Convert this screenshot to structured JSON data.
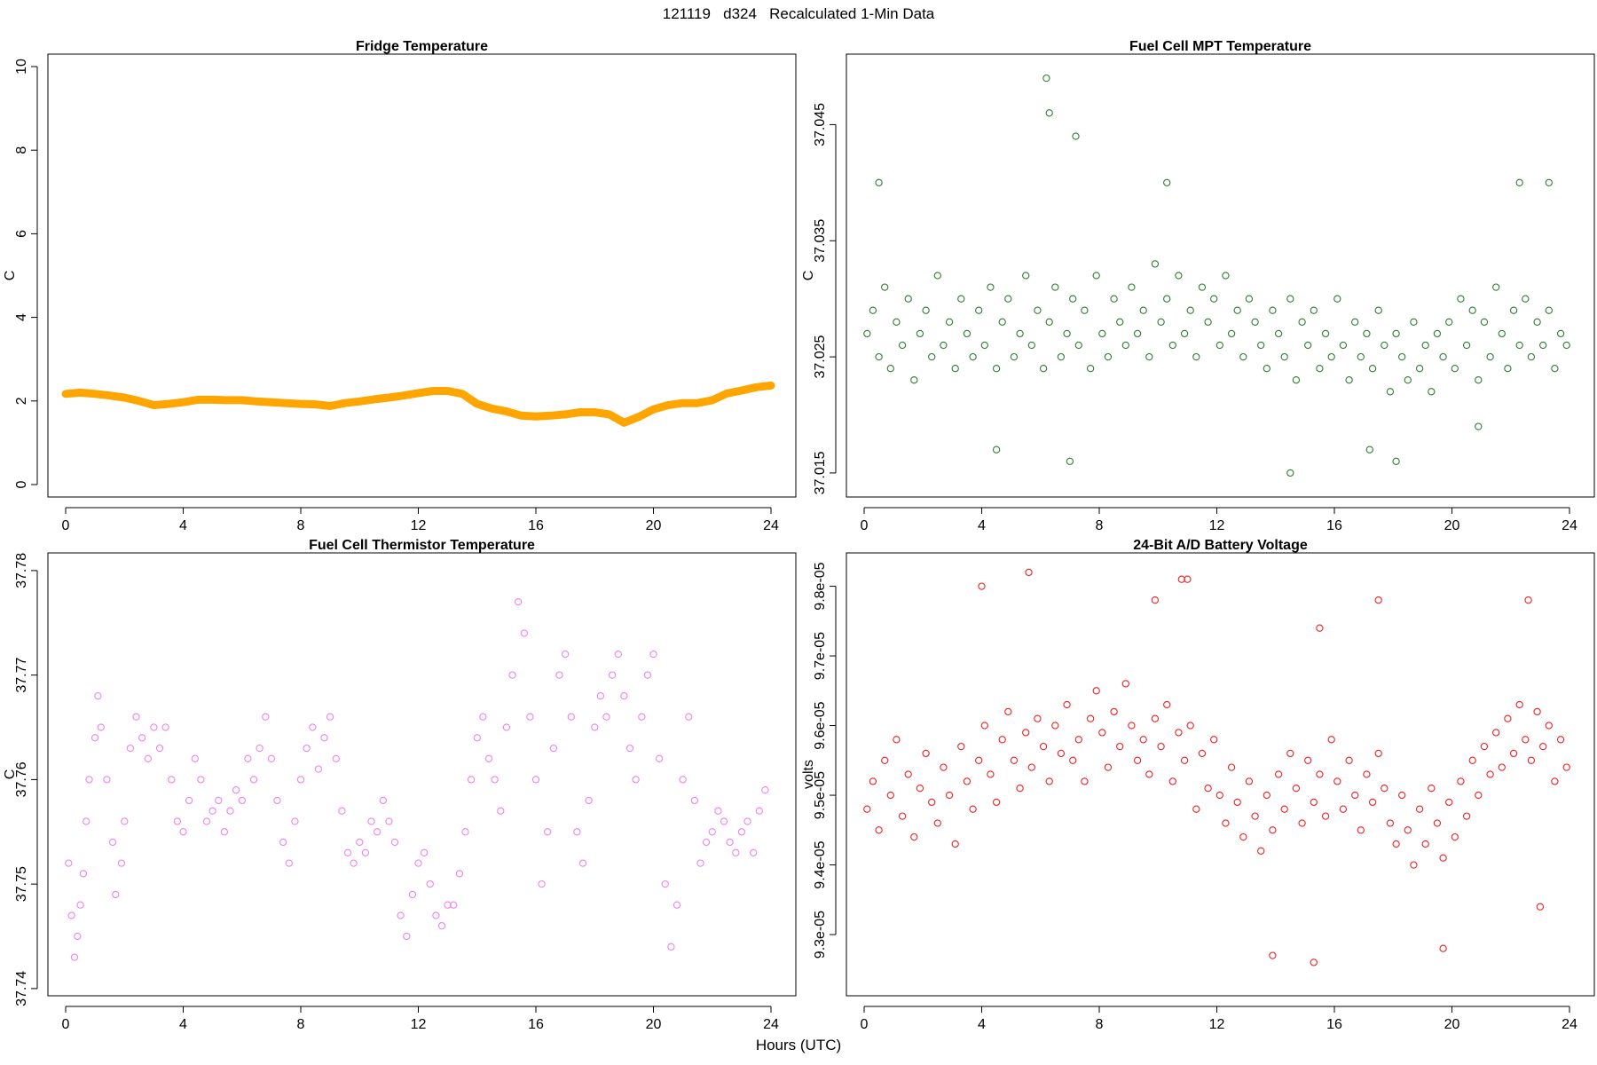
{
  "page": {
    "title": "121119   d324   Recalculated 1-Min Data",
    "xlabel": "Hours (UTC)"
  },
  "chart_data": [
    {
      "id": "fridge",
      "type": "line",
      "title": "Fridge Temperature",
      "ylabel": "C",
      "xlim": [
        0,
        24
      ],
      "ylim": [
        0,
        10
      ],
      "xticks": [
        0,
        4,
        8,
        12,
        16,
        20,
        24
      ],
      "yticks": [
        0,
        2,
        4,
        6,
        8,
        10
      ],
      "ytick_labels": [
        "0",
        "2",
        "4",
        "6",
        "8",
        "10"
      ],
      "color": "#FFA500",
      "x": [
        0,
        0.5,
        1,
        1.5,
        2,
        2.5,
        3,
        3.5,
        4,
        4.5,
        5,
        5.5,
        6,
        6.5,
        7,
        7.5,
        8,
        8.5,
        9,
        9.5,
        10,
        10.5,
        11,
        11.5,
        12,
        12.5,
        13,
        13.5,
        14,
        14.5,
        15,
        15.5,
        16,
        16.5,
        17,
        17.5,
        18,
        18.5,
        19,
        19.5,
        20,
        20.5,
        21,
        21.5,
        22,
        22.5,
        23,
        23.5,
        24
      ],
      "values": [
        2.17,
        2.2,
        2.17,
        2.13,
        2.08,
        2.0,
        1.9,
        1.93,
        1.97,
        2.03,
        2.03,
        2.02,
        2.02,
        1.99,
        1.97,
        1.95,
        1.93,
        1.92,
        1.88,
        1.95,
        1.99,
        2.04,
        2.08,
        2.13,
        2.19,
        2.24,
        2.24,
        2.17,
        1.93,
        1.82,
        1.75,
        1.65,
        1.63,
        1.65,
        1.68,
        1.73,
        1.73,
        1.68,
        1.48,
        1.62,
        1.8,
        1.9,
        1.95,
        1.95,
        2.02,
        2.18,
        2.25,
        2.33,
        2.37
      ]
    },
    {
      "id": "mpt",
      "type": "scatter",
      "title": "Fuel Cell MPT Temperature",
      "ylabel": "C",
      "xlim": [
        0,
        24
      ],
      "ylim": [
        37.014,
        37.05
      ],
      "xticks": [
        0,
        4,
        8,
        12,
        16,
        20,
        24
      ],
      "yticks": [
        37.015,
        37.025,
        37.035,
        37.045
      ],
      "ytick_labels": [
        "37.015",
        "37.025",
        "37.035",
        "37.045"
      ],
      "color": "#2E7D32",
      "x": [
        0.1,
        0.3,
        0.5,
        0.7,
        0.9,
        1.1,
        1.3,
        1.5,
        1.7,
        1.9,
        2.1,
        2.3,
        2.5,
        2.7,
        2.9,
        3.1,
        3.3,
        3.5,
        3.7,
        3.9,
        4.1,
        4.3,
        4.5,
        4.7,
        4.9,
        5.1,
        5.3,
        5.5,
        5.7,
        5.9,
        6.1,
        6.3,
        6.5,
        6.7,
        6.9,
        7.1,
        7.3,
        7.5,
        7.7,
        7.9,
        8.1,
        8.3,
        8.5,
        8.7,
        8.9,
        9.1,
        9.3,
        9.5,
        9.7,
        9.9,
        10.1,
        10.3,
        10.5,
        10.7,
        10.9,
        11.1,
        11.3,
        11.5,
        11.7,
        11.9,
        12.1,
        12.3,
        12.5,
        12.7,
        12.9,
        13.1,
        13.3,
        13.5,
        13.7,
        13.9,
        14.1,
        14.3,
        14.5,
        14.7,
        14.9,
        15.1,
        15.3,
        15.5,
        15.7,
        15.9,
        16.1,
        16.3,
        16.5,
        16.7,
        16.9,
        17.1,
        17.3,
        17.5,
        17.7,
        17.9,
        18.1,
        18.3,
        18.5,
        18.7,
        18.9,
        19.1,
        19.3,
        19.5,
        19.7,
        19.9,
        20.1,
        20.3,
        20.5,
        20.7,
        20.9,
        21.1,
        21.3,
        21.5,
        21.7,
        21.9,
        22.1,
        22.3,
        22.5,
        22.7,
        22.9,
        23.1,
        23.3,
        23.5,
        23.7,
        23.9,
        0.5,
        6.2,
        6.3,
        7.2,
        10.3,
        14.5,
        17.2,
        18.1,
        20.9,
        22.3,
        23.3,
        4.5,
        7.0
      ],
      "values": [
        37.027,
        37.029,
        37.025,
        37.031,
        37.024,
        37.028,
        37.026,
        37.03,
        37.023,
        37.027,
        37.029,
        37.025,
        37.032,
        37.026,
        37.028,
        37.024,
        37.03,
        37.027,
        37.025,
        37.029,
        37.026,
        37.031,
        37.024,
        37.028,
        37.03,
        37.025,
        37.027,
        37.032,
        37.026,
        37.029,
        37.024,
        37.028,
        37.031,
        37.025,
        37.027,
        37.03,
        37.026,
        37.029,
        37.024,
        37.032,
        37.027,
        37.025,
        37.03,
        37.028,
        37.026,
        37.031,
        37.027,
        37.029,
        37.025,
        37.033,
        37.028,
        37.03,
        37.026,
        37.032,
        37.027,
        37.029,
        37.025,
        37.031,
        37.028,
        37.03,
        37.026,
        37.032,
        37.027,
        37.029,
        37.025,
        37.03,
        37.028,
        37.026,
        37.024,
        37.029,
        37.027,
        37.025,
        37.03,
        37.023,
        37.028,
        37.026,
        37.029,
        37.024,
        37.027,
        37.025,
        37.03,
        37.026,
        37.023,
        37.028,
        37.025,
        37.027,
        37.024,
        37.029,
        37.026,
        37.022,
        37.027,
        37.025,
        37.023,
        37.028,
        37.024,
        37.026,
        37.022,
        37.027,
        37.025,
        37.028,
        37.024,
        37.03,
        37.026,
        37.029,
        37.023,
        37.028,
        37.025,
        37.031,
        37.027,
        37.024,
        37.029,
        37.026,
        37.03,
        37.025,
        37.028,
        37.026,
        37.029,
        37.024,
        37.027,
        37.026,
        37.04,
        37.049,
        37.046,
        37.044,
        37.04,
        37.015,
        37.017,
        37.016,
        37.019,
        37.04,
        37.04,
        37.017,
        37.016
      ]
    },
    {
      "id": "thermistor",
      "type": "scatter",
      "title": "Fuel Cell Thermistor Temperature",
      "ylabel": "C",
      "xlim": [
        0,
        24
      ],
      "ylim": [
        37.7405,
        37.7805
      ],
      "xticks": [
        0,
        4,
        8,
        12,
        16,
        20,
        24
      ],
      "yticks": [
        37.74,
        37.75,
        37.76,
        37.77,
        37.78
      ],
      "ytick_labels": [
        "37.74",
        "37.75",
        "37.76",
        "37.77",
        "37.78"
      ],
      "color": "#EE82EE",
      "x": [
        0.1,
        0.2,
        0.3,
        0.4,
        0.5,
        0.6,
        0.7,
        0.8,
        1.0,
        1.1,
        1.2,
        1.4,
        1.6,
        1.7,
        1.9,
        2.0,
        2.2,
        2.4,
        2.6,
        2.8,
        3.0,
        3.2,
        3.4,
        3.6,
        3.8,
        4.0,
        4.2,
        4.4,
        4.6,
        4.8,
        5.0,
        5.2,
        5.4,
        5.6,
        5.8,
        6.0,
        6.2,
        6.4,
        6.6,
        6.8,
        7.0,
        7.2,
        7.4,
        7.6,
        7.8,
        8.0,
        8.2,
        8.4,
        8.6,
        8.8,
        9.0,
        9.2,
        9.4,
        9.6,
        9.8,
        10.0,
        10.2,
        10.4,
        10.6,
        10.8,
        11.0,
        11.2,
        11.4,
        11.6,
        11.8,
        12.0,
        12.2,
        12.4,
        12.6,
        12.8,
        13.0,
        13.2,
        13.4,
        13.6,
        13.8,
        14.0,
        14.2,
        14.4,
        14.6,
        14.8,
        15.0,
        15.2,
        15.4,
        15.6,
        15.8,
        16.0,
        16.2,
        16.4,
        16.6,
        16.8,
        17.0,
        17.2,
        17.4,
        17.6,
        17.8,
        18.0,
        18.2,
        18.4,
        18.6,
        18.8,
        19.0,
        19.2,
        19.4,
        19.6,
        19.8,
        20.0,
        20.2,
        20.4,
        20.6,
        20.8,
        21.0,
        21.2,
        21.4,
        21.6,
        21.8,
        22.0,
        22.2,
        22.4,
        22.6,
        22.8,
        23.0,
        23.2,
        23.4,
        23.6,
        23.8
      ],
      "values": [
        37.752,
        37.747,
        37.743,
        37.745,
        37.748,
        37.751,
        37.756,
        37.76,
        37.764,
        37.768,
        37.765,
        37.76,
        37.754,
        37.749,
        37.752,
        37.756,
        37.763,
        37.766,
        37.764,
        37.762,
        37.765,
        37.763,
        37.765,
        37.76,
        37.756,
        37.755,
        37.758,
        37.762,
        37.76,
        37.756,
        37.757,
        37.758,
        37.755,
        37.757,
        37.759,
        37.758,
        37.762,
        37.76,
        37.763,
        37.766,
        37.762,
        37.758,
        37.754,
        37.752,
        37.756,
        37.76,
        37.763,
        37.765,
        37.761,
        37.764,
        37.766,
        37.762,
        37.757,
        37.753,
        37.752,
        37.754,
        37.753,
        37.756,
        37.755,
        37.758,
        37.756,
        37.754,
        37.747,
        37.745,
        37.749,
        37.752,
        37.753,
        37.75,
        37.747,
        37.746,
        37.748,
        37.748,
        37.751,
        37.755,
        37.76,
        37.764,
        37.766,
        37.762,
        37.76,
        37.757,
        37.765,
        37.77,
        37.777,
        37.774,
        37.766,
        37.76,
        37.75,
        37.755,
        37.763,
        37.77,
        37.772,
        37.766,
        37.755,
        37.752,
        37.758,
        37.765,
        37.768,
        37.766,
        37.77,
        37.772,
        37.768,
        37.763,
        37.76,
        37.766,
        37.77,
        37.772,
        37.762,
        37.75,
        37.744,
        37.748,
        37.76,
        37.766,
        37.758,
        37.752,
        37.754,
        37.755,
        37.757,
        37.756,
        37.754,
        37.753,
        37.755,
        37.756,
        37.753,
        37.757,
        37.759
      ]
    },
    {
      "id": "battery",
      "type": "scatter",
      "title": "24-Bit A/D Battery Voltage",
      "ylabel": "volts",
      "xlim": [
        0,
        24
      ],
      "ylim": [
        9.23e-05,
        9.83e-05
      ],
      "xticks": [
        0,
        4,
        8,
        12,
        16,
        20,
        24
      ],
      "yticks": [
        9.3e-05,
        9.4e-05,
        9.5e-05,
        9.6e-05,
        9.7e-05,
        9.8e-05
      ],
      "ytick_labels": [
        "9.3e-05",
        "9.4e-05",
        "9.5e-05",
        "9.6e-05",
        "9.7e-05",
        "9.8e-05"
      ],
      "color": "#EE2222",
      "x": [
        0.1,
        0.3,
        0.5,
        0.7,
        0.9,
        1.1,
        1.3,
        1.5,
        1.7,
        1.9,
        2.1,
        2.3,
        2.5,
        2.7,
        2.9,
        3.1,
        3.3,
        3.5,
        3.7,
        3.9,
        4.1,
        4.3,
        4.5,
        4.7,
        4.9,
        5.1,
        5.3,
        5.5,
        5.7,
        5.9,
        6.1,
        6.3,
        6.5,
        6.7,
        6.9,
        7.1,
        7.3,
        7.5,
        7.7,
        7.9,
        8.1,
        8.3,
        8.5,
        8.7,
        8.9,
        9.1,
        9.3,
        9.5,
        9.7,
        9.9,
        10.1,
        10.3,
        10.5,
        10.7,
        10.9,
        11.1,
        11.3,
        11.5,
        11.7,
        11.9,
        12.1,
        12.3,
        12.5,
        12.7,
        12.9,
        13.1,
        13.3,
        13.5,
        13.7,
        13.9,
        14.1,
        14.3,
        14.5,
        14.7,
        14.9,
        15.1,
        15.3,
        15.5,
        15.7,
        15.9,
        16.1,
        16.3,
        16.5,
        16.7,
        16.9,
        17.1,
        17.3,
        17.5,
        17.7,
        17.9,
        18.1,
        18.3,
        18.5,
        18.7,
        18.9,
        19.1,
        19.3,
        19.5,
        19.7,
        19.9,
        20.1,
        20.3,
        20.5,
        20.7,
        20.9,
        21.1,
        21.3,
        21.5,
        21.7,
        21.9,
        22.1,
        22.3,
        22.5,
        22.7,
        22.9,
        23.1,
        23.3,
        23.5,
        23.7,
        23.9,
        4.0,
        5.6,
        9.9,
        10.8,
        11.0,
        15.5,
        17.5,
        22.6,
        13.9,
        15.3,
        23.0,
        19.7
      ],
      "values": [
        9.48e-05,
        9.52e-05,
        9.45e-05,
        9.55e-05,
        9.5e-05,
        9.58e-05,
        9.47e-05,
        9.53e-05,
        9.44e-05,
        9.51e-05,
        9.56e-05,
        9.49e-05,
        9.46e-05,
        9.54e-05,
        9.5e-05,
        9.43e-05,
        9.57e-05,
        9.52e-05,
        9.48e-05,
        9.55e-05,
        9.6e-05,
        9.53e-05,
        9.49e-05,
        9.58e-05,
        9.62e-05,
        9.55e-05,
        9.51e-05,
        9.59e-05,
        9.54e-05,
        9.61e-05,
        9.57e-05,
        9.52e-05,
        9.6e-05,
        9.56e-05,
        9.63e-05,
        9.55e-05,
        9.58e-05,
        9.52e-05,
        9.61e-05,
        9.65e-05,
        9.59e-05,
        9.54e-05,
        9.62e-05,
        9.57e-05,
        9.66e-05,
        9.6e-05,
        9.55e-05,
        9.58e-05,
        9.53e-05,
        9.61e-05,
        9.57e-05,
        9.63e-05,
        9.52e-05,
        9.59e-05,
        9.55e-05,
        9.6e-05,
        9.48e-05,
        9.56e-05,
        9.51e-05,
        9.58e-05,
        9.5e-05,
        9.46e-05,
        9.54e-05,
        9.49e-05,
        9.44e-05,
        9.52e-05,
        9.47e-05,
        9.42e-05,
        9.5e-05,
        9.45e-05,
        9.53e-05,
        9.48e-05,
        9.56e-05,
        9.51e-05,
        9.46e-05,
        9.55e-05,
        9.49e-05,
        9.53e-05,
        9.47e-05,
        9.58e-05,
        9.52e-05,
        9.48e-05,
        9.55e-05,
        9.5e-05,
        9.45e-05,
        9.53e-05,
        9.49e-05,
        9.56e-05,
        9.51e-05,
        9.46e-05,
        9.43e-05,
        9.5e-05,
        9.45e-05,
        9.4e-05,
        9.48e-05,
        9.43e-05,
        9.51e-05,
        9.46e-05,
        9.41e-05,
        9.49e-05,
        9.44e-05,
        9.52e-05,
        9.47e-05,
        9.55e-05,
        9.5e-05,
        9.57e-05,
        9.53e-05,
        9.59e-05,
        9.54e-05,
        9.61e-05,
        9.56e-05,
        9.63e-05,
        9.58e-05,
        9.55e-05,
        9.62e-05,
        9.57e-05,
        9.6e-05,
        9.52e-05,
        9.58e-05,
        9.54e-05,
        9.8e-05,
        9.82e-05,
        9.78e-05,
        9.81e-05,
        9.81e-05,
        9.74e-05,
        9.78e-05,
        9.78e-05,
        9.27e-05,
        9.26e-05,
        9.34e-05,
        9.28e-05
      ]
    }
  ]
}
